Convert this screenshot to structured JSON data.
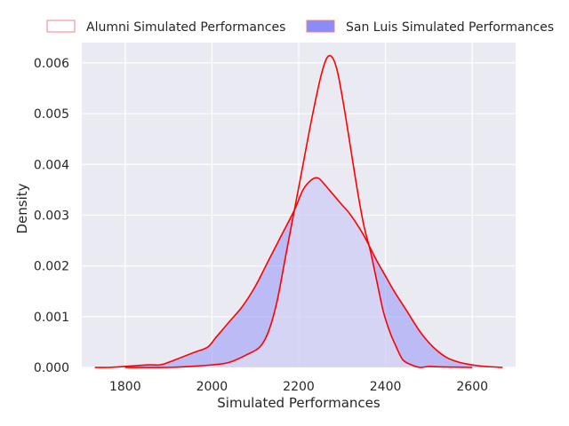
{
  "chart_data": {
    "type": "area",
    "title": "",
    "xlabel": "Simulated Performances",
    "ylabel": "Density",
    "xlim": [
      1700,
      2700
    ],
    "ylim": [
      0,
      0.0064
    ],
    "xticks": [
      1800,
      2000,
      2200,
      2400,
      2600
    ],
    "yticks": [
      0.0,
      0.001,
      0.002,
      0.003,
      0.004,
      0.005,
      0.006
    ],
    "ytick_labels": [
      "0.000",
      "0.001",
      "0.002",
      "0.003",
      "0.004",
      "0.005",
      "0.006"
    ],
    "grid": true,
    "legend": "top-center, outside",
    "series": [
      {
        "name": "Alumni Simulated Performances",
        "fill": "#ebeaf2",
        "fill_opacity": 0.55,
        "line_color": "#ff0000",
        "legend_face": "#ffffff",
        "legend_edge": "#f08080",
        "points": [
          [
            1800,
            0.0
          ],
          [
            1900,
            0.0
          ],
          [
            1950,
            2e-05
          ],
          [
            2000,
            5e-05
          ],
          [
            2040,
            0.0001
          ],
          [
            2080,
            0.00025
          ],
          [
            2110,
            0.0004
          ],
          [
            2130,
            0.0007
          ],
          [
            2150,
            0.0013
          ],
          [
            2170,
            0.0022
          ],
          [
            2190,
            0.0031
          ],
          [
            2210,
            0.004
          ],
          [
            2230,
            0.0049
          ],
          [
            2250,
            0.0057
          ],
          [
            2265,
            0.0061
          ],
          [
            2278,
            0.0061
          ],
          [
            2290,
            0.0058
          ],
          [
            2305,
            0.0051
          ],
          [
            2320,
            0.0043
          ],
          [
            2335,
            0.0035
          ],
          [
            2350,
            0.0028
          ],
          [
            2365,
            0.0023
          ],
          [
            2380,
            0.0017
          ],
          [
            2395,
            0.0011
          ],
          [
            2410,
            0.0007
          ],
          [
            2425,
            0.0004
          ],
          [
            2440,
            0.00015
          ],
          [
            2460,
            5e-05
          ],
          [
            2480,
            0.0
          ],
          [
            2500,
            2e-05
          ],
          [
            2530,
            1e-05
          ],
          [
            2600,
            0.0
          ]
        ]
      },
      {
        "name": "San Luis Simulated Performances",
        "fill": "#8c8cf7",
        "fill_opacity": 0.5,
        "line_color": "#ff0000",
        "legend_face": "#8c8cf7",
        "legend_edge": "#f08080",
        "points": [
          [
            1730,
            0.0
          ],
          [
            1760,
            0.0
          ],
          [
            1800,
            2e-05
          ],
          [
            1850,
            5e-05
          ],
          [
            1880,
            5e-05
          ],
          [
            1900,
            0.0001
          ],
          [
            1930,
            0.0002
          ],
          [
            1960,
            0.0003
          ],
          [
            1990,
            0.0004
          ],
          [
            2010,
            0.0006
          ],
          [
            2040,
            0.0009
          ],
          [
            2070,
            0.0012
          ],
          [
            2100,
            0.0016
          ],
          [
            2130,
            0.0021
          ],
          [
            2160,
            0.0026
          ],
          [
            2190,
            0.0031
          ],
          [
            2210,
            0.0035
          ],
          [
            2230,
            0.0037
          ],
          [
            2245,
            0.00373
          ],
          [
            2260,
            0.0036
          ],
          [
            2280,
            0.0034
          ],
          [
            2300,
            0.0032
          ],
          [
            2320,
            0.003
          ],
          [
            2350,
            0.0026
          ],
          [
            2380,
            0.0021
          ],
          [
            2400,
            0.0018
          ],
          [
            2420,
            0.0015
          ],
          [
            2450,
            0.0011
          ],
          [
            2480,
            0.0007
          ],
          [
            2510,
            0.0004
          ],
          [
            2540,
            0.0002
          ],
          [
            2570,
            0.0001
          ],
          [
            2600,
            5e-05
          ],
          [
            2630,
            2e-05
          ],
          [
            2670,
            0.0
          ]
        ]
      }
    ]
  },
  "colors": {
    "plot_background": "#eaeaf2",
    "gridline": "#ffffff",
    "text": "#262626"
  }
}
